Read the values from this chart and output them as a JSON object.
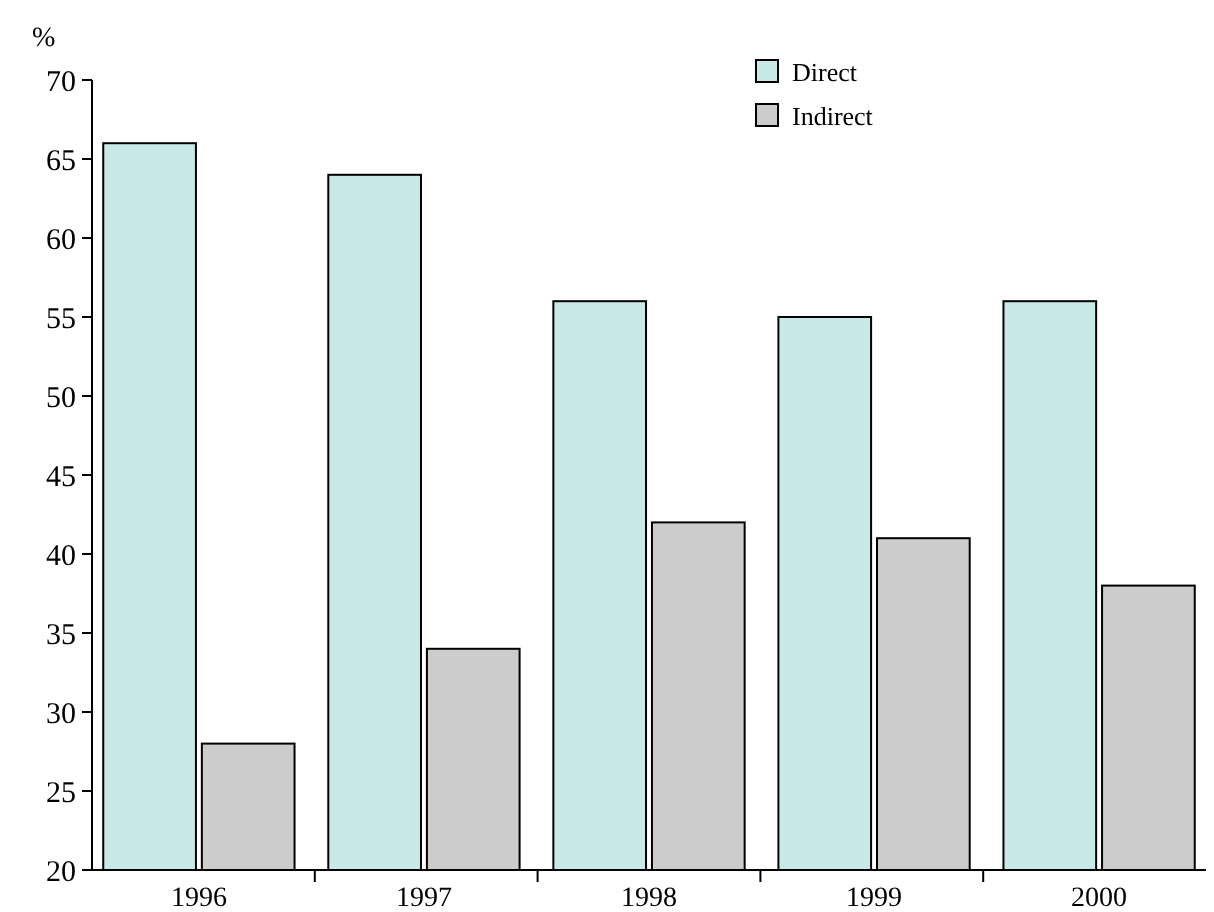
{
  "chart_data": {
    "type": "bar",
    "ylabel": "%",
    "categories": [
      "1996",
      "1997",
      "1998",
      "1999",
      "2000"
    ],
    "series": [
      {
        "name": "Direct",
        "color": "#c9e8e8",
        "values": [
          66,
          64,
          56,
          55,
          56
        ]
      },
      {
        "name": "Indirect",
        "color": "#cccccc",
        "values": [
          28,
          34,
          42,
          41,
          38
        ]
      }
    ],
    "ylim": [
      20,
      70
    ],
    "yticks": [
      20,
      25,
      30,
      35,
      40,
      45,
      50,
      55,
      60,
      65,
      70
    ],
    "grid": false,
    "legend": "top right"
  }
}
